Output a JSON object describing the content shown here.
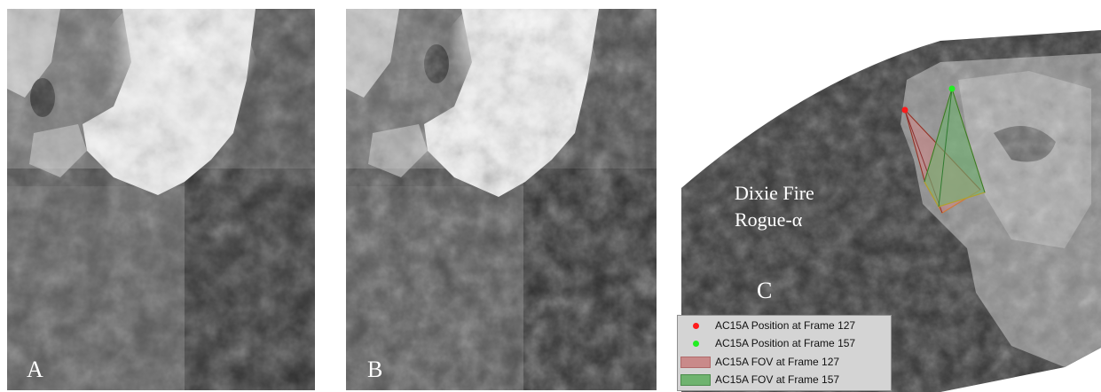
{
  "panels": {
    "a": {
      "letter": "A"
    },
    "b": {
      "letter": "B"
    },
    "c": {
      "letter": "C",
      "caption_title": "Dixie Fire",
      "caption_subtitle": "Rogue-α"
    }
  },
  "legend": {
    "items": [
      {
        "label": "AC15A Position at Frame 127",
        "kind": "dot",
        "color": "#ff1a1a"
      },
      {
        "label": "AC15A Position at Frame 157",
        "kind": "dot",
        "color": "#22ee22"
      },
      {
        "label": "AC15A FOV at Frame 127",
        "kind": "swatch",
        "color": "#c98a8a"
      },
      {
        "label": "AC15A FOV at Frame 157",
        "kind": "swatch",
        "color": "#6fb36f"
      }
    ]
  }
}
